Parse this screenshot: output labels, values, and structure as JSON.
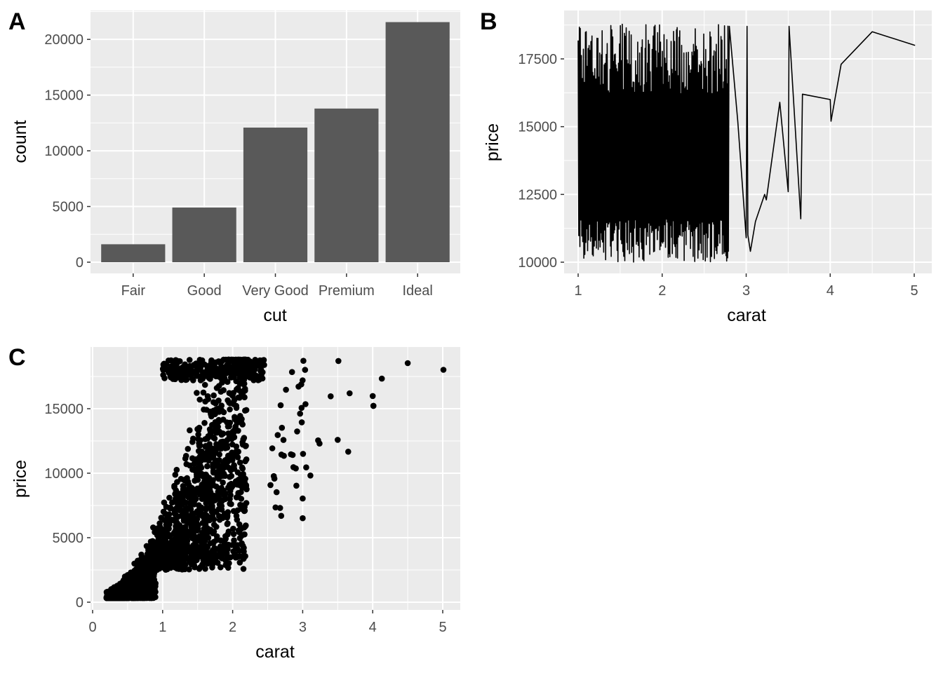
{
  "chart_data": [
    {
      "tag": "A",
      "type": "bar",
      "xlabel": "cut",
      "ylabel": "count",
      "categories": [
        "Fair",
        "Good",
        "Very Good",
        "Premium",
        "Ideal"
      ],
      "values": [
        1610,
        4906,
        12082,
        13791,
        21551
      ],
      "ylim": [
        0,
        22700
      ],
      "yticks": [
        0,
        5000,
        10000,
        15000,
        20000
      ],
      "grid": true,
      "colors": {
        "panel": "#ebebeb",
        "grid": "#ffffff",
        "bar": "#595959"
      }
    },
    {
      "tag": "B",
      "type": "line",
      "xlabel": "carat",
      "ylabel": "price",
      "xlim": [
        0.99,
        5.01
      ],
      "ylim": [
        9630,
        19180
      ],
      "xticks": [
        1,
        2,
        3,
        4,
        5
      ],
      "yticks": [
        10000,
        12500,
        15000,
        17500
      ],
      "grid": true,
      "dense_region": {
        "x": [
          1.0,
          2.8
        ],
        "y": [
          10000,
          18800
        ]
      },
      "sparse_points": [
        [
          2.8,
          18700
        ],
        [
          2.9,
          15200
        ],
        [
          3.0,
          10900
        ],
        [
          3.01,
          18700
        ],
        [
          3.02,
          11000
        ],
        [
          3.05,
          10400
        ],
        [
          3.11,
          11500
        ],
        [
          3.22,
          12500
        ],
        [
          3.24,
          12300
        ],
        [
          3.4,
          15900
        ],
        [
          3.5,
          12600
        ],
        [
          3.51,
          18700
        ],
        [
          3.65,
          11600
        ],
        [
          3.67,
          16200
        ],
        [
          4.0,
          16000
        ],
        [
          4.01,
          15200
        ],
        [
          4.13,
          17300
        ],
        [
          4.5,
          18500
        ],
        [
          5.01,
          18000
        ]
      ],
      "colors": {
        "panel": "#ebebeb",
        "grid": "#ffffff",
        "line": "#000000"
      }
    },
    {
      "tag": "C",
      "type": "scatter",
      "xlabel": "carat",
      "ylabel": "price",
      "xlim": [
        0,
        5.25
      ],
      "ylim": [
        -650,
        19400
      ],
      "xticks": [
        0,
        1,
        2,
        3,
        4,
        5
      ],
      "yticks": [
        0,
        5000,
        10000,
        15000
      ],
      "grid": true,
      "outliers": [
        [
          5.01,
          18018
        ],
        [
          4.5,
          18531
        ],
        [
          4.13,
          17329
        ],
        [
          4.01,
          15223
        ],
        [
          4.01,
          15223
        ],
        [
          4.0,
          15984
        ],
        [
          3.67,
          16193
        ],
        [
          3.65,
          11668
        ],
        [
          3.51,
          18701
        ],
        [
          3.5,
          12587
        ],
        [
          3.4,
          15964
        ],
        [
          3.24,
          12300
        ],
        [
          3.22,
          12545
        ],
        [
          3.11,
          9823
        ],
        [
          3.05,
          10453
        ],
        [
          3.04,
          15354
        ],
        [
          3.01,
          18710
        ],
        [
          3.0,
          6512
        ],
        [
          3.0,
          8040
        ]
      ],
      "colors": {
        "panel": "#ebebeb",
        "grid": "#ffffff",
        "point": "#000000"
      }
    }
  ]
}
